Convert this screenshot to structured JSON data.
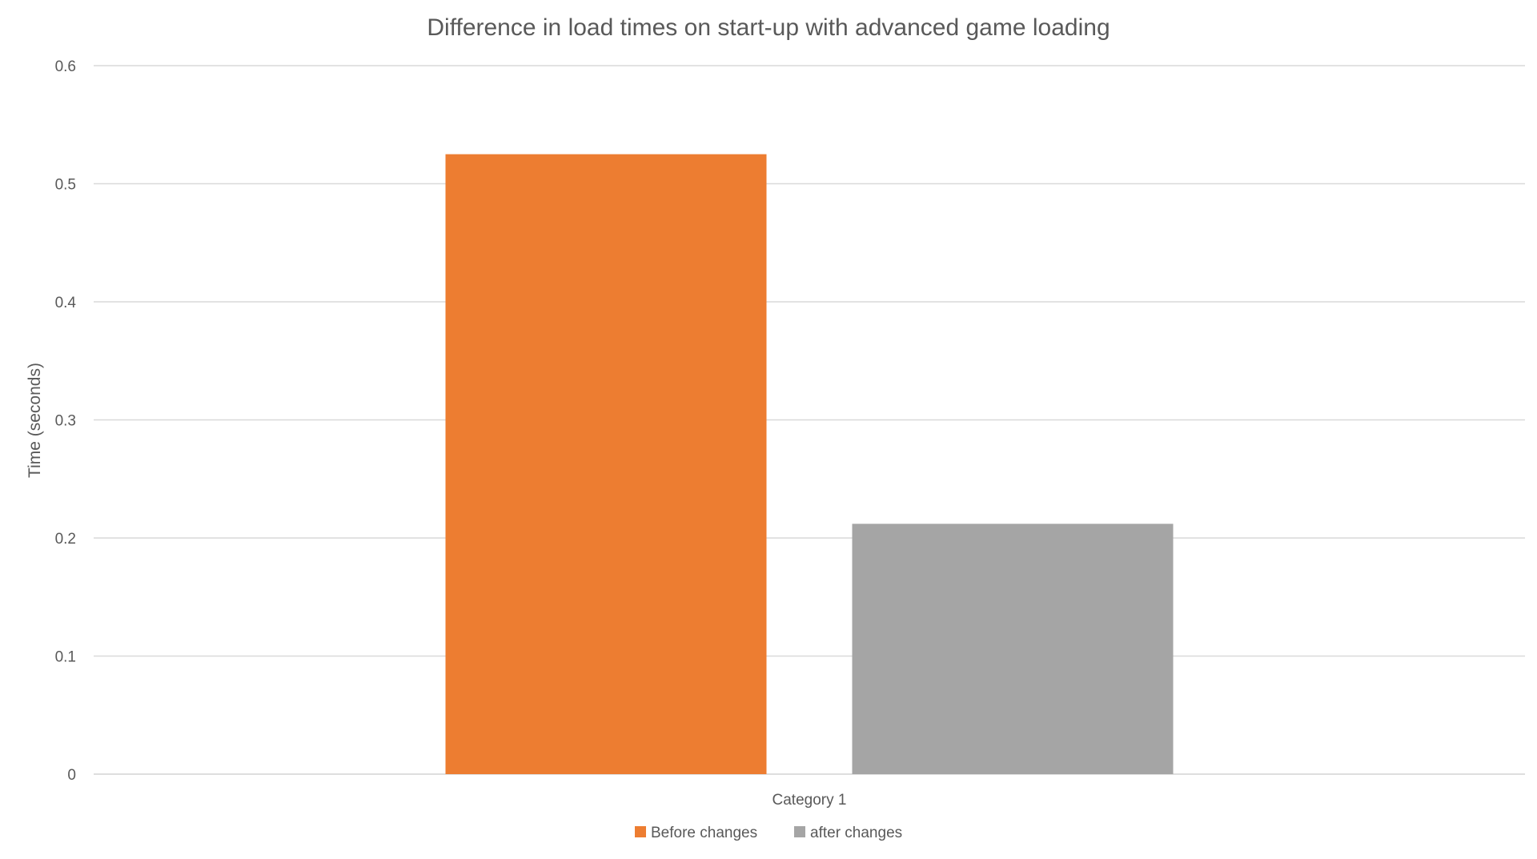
{
  "chart_data": {
    "type": "bar",
    "title": "Difference in load times on start-up with advanced game loading",
    "xlabel": "",
    "ylabel": "Time (seconds)",
    "categories": [
      "Category 1"
    ],
    "ylim": [
      0,
      0.6
    ],
    "yticks": [
      "0",
      "0.1",
      "0.2",
      "0.3",
      "0.4",
      "0.5",
      "0.6"
    ],
    "grid": true,
    "legend_position": "bottom",
    "series": [
      {
        "name": "Before changes",
        "values": [
          0.525
        ],
        "color": "#ED7D31"
      },
      {
        "name": "after changes",
        "values": [
          0.212
        ],
        "color": "#A5A5A5"
      }
    ]
  }
}
